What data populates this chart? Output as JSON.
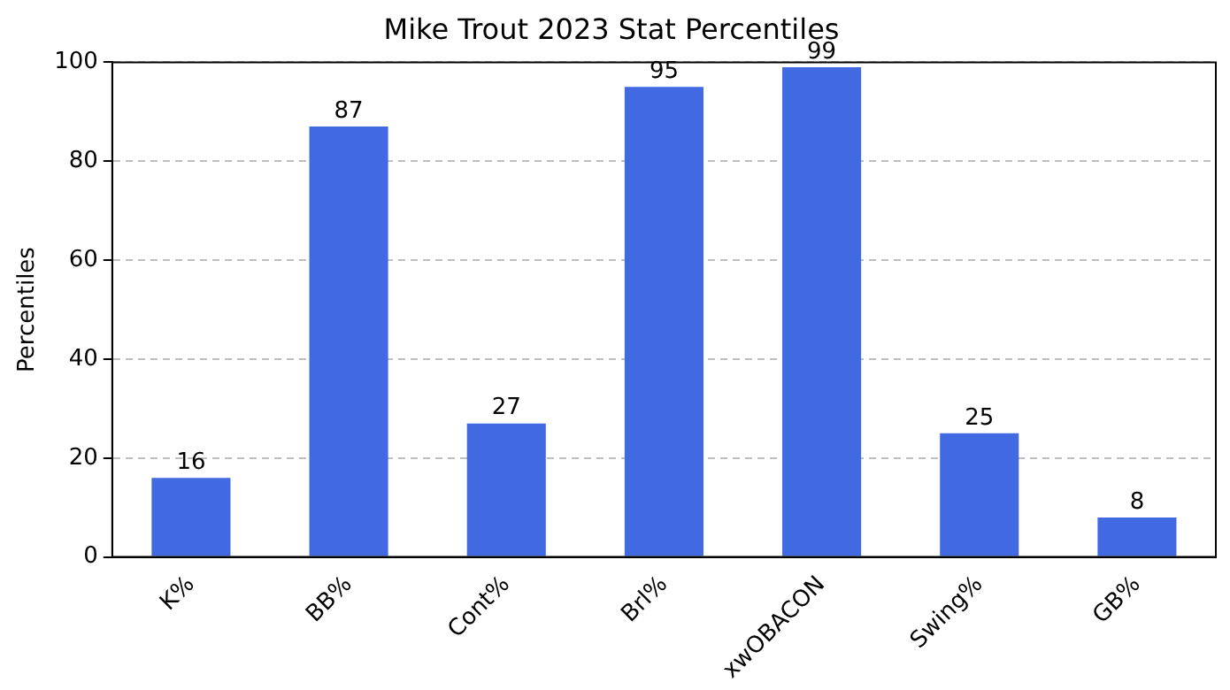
{
  "chart_data": {
    "type": "bar",
    "title": "Mike Trout 2023 Stat Percentiles",
    "ylabel": "Percentiles",
    "categories": [
      "K%",
      "BB%",
      "Cont%",
      "Brl%",
      "xwOBACON",
      "Swing%",
      "GB%"
    ],
    "values": [
      16,
      87,
      27,
      95,
      99,
      25,
      8
    ],
    "color": "#4169e1",
    "ylim": [
      0,
      100
    ],
    "yticks": [
      0,
      20,
      40,
      60,
      80,
      100
    ],
    "grid": "y",
    "data_labels": true
  }
}
